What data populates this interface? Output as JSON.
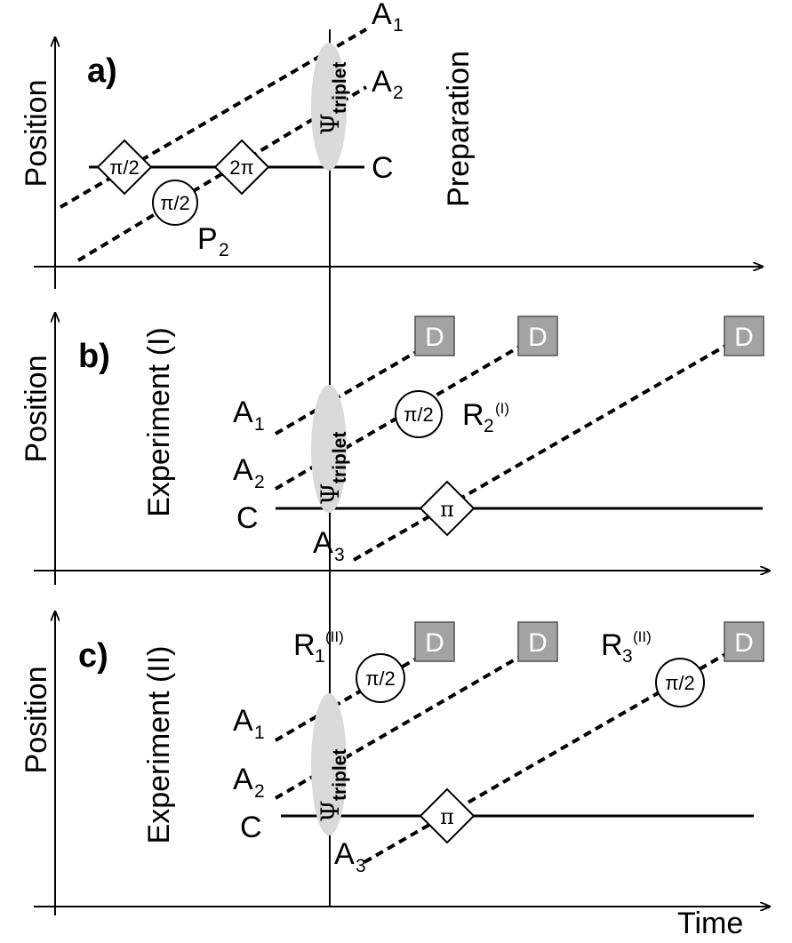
{
  "labels": {
    "position": "Position",
    "time": "Time",
    "detector": "D",
    "psi": "Ψ",
    "triplet": "triplet",
    "pulse_half": "π/2",
    "pulse_pi": "π",
    "pulse_2pi": "2π",
    "A": "A",
    "C": "C",
    "P": "P",
    "R": "R",
    "sub1": "1",
    "sub2": "2",
    "sub3": "3",
    "sup_I": "(I)",
    "sup_II": "(II)"
  },
  "panels": {
    "a": {
      "tag": "a)",
      "title": "Preparation"
    },
    "b": {
      "tag": "b)",
      "title": "Experiment (I)"
    },
    "c": {
      "tag": "c)",
      "title": "Experiment (II)"
    }
  }
}
